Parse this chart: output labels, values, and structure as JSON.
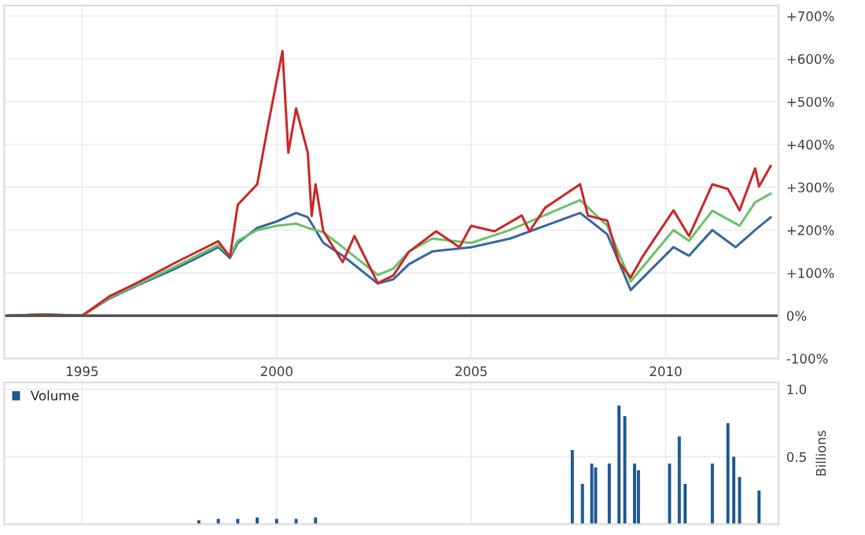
{
  "chart_data": [
    {
      "type": "line",
      "xlim": [
        1993.0,
        2012.9
      ],
      "xticks": [
        1995,
        2000,
        2005,
        2010
      ],
      "ylim": [
        -100,
        725
      ],
      "yticks": [
        {
          "value": -100,
          "label": "-100%"
        },
        {
          "value": 0,
          "label": "0%"
        },
        {
          "value": 100,
          "label": "+100%"
        },
        {
          "value": 200,
          "label": "+200%"
        },
        {
          "value": 300,
          "label": "+300%"
        },
        {
          "value": 400,
          "label": "+400%"
        },
        {
          "value": 500,
          "label": "+500%"
        },
        {
          "value": 600,
          "label": "+600%"
        },
        {
          "value": 700,
          "label": "+700%"
        }
      ],
      "grid": true,
      "ref_lines": [
        {
          "axis": "y",
          "value": 0,
          "color": "#555555"
        }
      ],
      "series": [
        {
          "color": "#3a6aa0",
          "x": [
            1993.1,
            1994.0,
            1995.0,
            1995.7,
            1996.4,
            1997.4,
            1998.5,
            1998.8,
            1999.0,
            1999.5,
            2000.0,
            2000.5,
            2000.8,
            2001.2,
            2001.7,
            2002.6,
            2003.0,
            2003.4,
            2004.0,
            2005.0,
            2006.0,
            2007.8,
            2008.5,
            2009.1,
            2010.2,
            2010.6,
            2011.2,
            2011.8,
            2012.3,
            2012.7
          ],
          "values": [
            0,
            3,
            0,
            40,
            70,
            110,
            160,
            135,
            170,
            205,
            220,
            240,
            230,
            170,
            140,
            75,
            85,
            120,
            150,
            160,
            180,
            240,
            190,
            60,
            160,
            140,
            200,
            160,
            200,
            230
          ]
        },
        {
          "color": "#6cc36c",
          "x": [
            1993.1,
            1994.0,
            1995.0,
            1995.7,
            1996.4,
            1997.4,
            1998.5,
            1998.8,
            1999.0,
            1999.5,
            2000.0,
            2000.5,
            2000.8,
            2001.2,
            2001.7,
            2002.6,
            2003.0,
            2003.4,
            2004.0,
            2005.0,
            2006.0,
            2007.8,
            2008.5,
            2009.1,
            2010.2,
            2010.6,
            2011.2,
            2011.9,
            2012.3,
            2012.7
          ],
          "values": [
            0,
            3,
            0,
            42,
            72,
            115,
            165,
            140,
            175,
            200,
            210,
            215,
            205,
            195,
            160,
            95,
            110,
            150,
            180,
            170,
            200,
            270,
            210,
            80,
            200,
            175,
            245,
            210,
            265,
            285
          ]
        },
        {
          "color": "#cc2a2a",
          "x": [
            1993.1,
            1994.0,
            1995.0,
            1995.7,
            1996.4,
            1997.4,
            1998.5,
            1998.8,
            1999.0,
            1999.5,
            1999.8,
            2000.15,
            2000.3,
            2000.5,
            2000.8,
            2000.9,
            2001.0,
            2001.2,
            2001.7,
            2002.0,
            2002.6,
            2003.0,
            2003.4,
            2004.1,
            2004.7,
            2005.0,
            2005.6,
            2006.3,
            2006.5,
            2006.9,
            2007.8,
            2008.0,
            2008.5,
            2008.8,
            2009.1,
            2009.4,
            2010.2,
            2010.6,
            2011.2,
            2011.6,
            2011.9,
            2012.3,
            2012.4,
            2012.7
          ],
          "values": [
            0,
            2,
            0,
            45,
            76,
            124,
            174,
            137,
            259,
            307,
            455,
            618,
            381,
            484,
            381,
            233,
            307,
            197,
            125,
            186,
            76,
            94,
            149,
            197,
            160,
            210,
            197,
            234,
            197,
            252,
            307,
            234,
            222,
            125,
            89,
            137,
            246,
            186,
            307,
            296,
            246,
            344,
            302,
            350
          ]
        }
      ]
    },
    {
      "type": "bar",
      "xlim": [
        1993.0,
        2012.9
      ],
      "xticks": [
        1995,
        2000,
        2005,
        2010
      ],
      "ylim": [
        0,
        1.05
      ],
      "yticks": [
        {
          "value": 0.5,
          "label": "0.5"
        },
        {
          "value": 1.0,
          "label": "1.0"
        }
      ],
      "ylabel": "Billions",
      "grid": true,
      "tick_labels": "y",
      "legend": "top left",
      "series": [
        {
          "name": "Volume",
          "color": "#1f5a94",
          "x": [
            1998.0,
            1998.5,
            1999.0,
            1999.5,
            2000.0,
            2000.5,
            2001.0,
            2007.6,
            2007.86,
            2008.1,
            2008.2,
            2008.55,
            2008.8,
            2008.95,
            2009.2,
            2009.3,
            2010.1,
            2010.35,
            2010.5,
            2011.2,
            2011.6,
            2011.75,
            2011.9,
            2012.4
          ],
          "values": [
            0.03,
            0.04,
            0.04,
            0.05,
            0.04,
            0.04,
            0.05,
            0.55,
            0.3,
            0.45,
            0.42,
            0.45,
            0.88,
            0.8,
            0.45,
            0.4,
            0.45,
            0.65,
            0.3,
            0.45,
            0.75,
            0.5,
            0.35,
            0.25
          ]
        }
      ]
    }
  ]
}
